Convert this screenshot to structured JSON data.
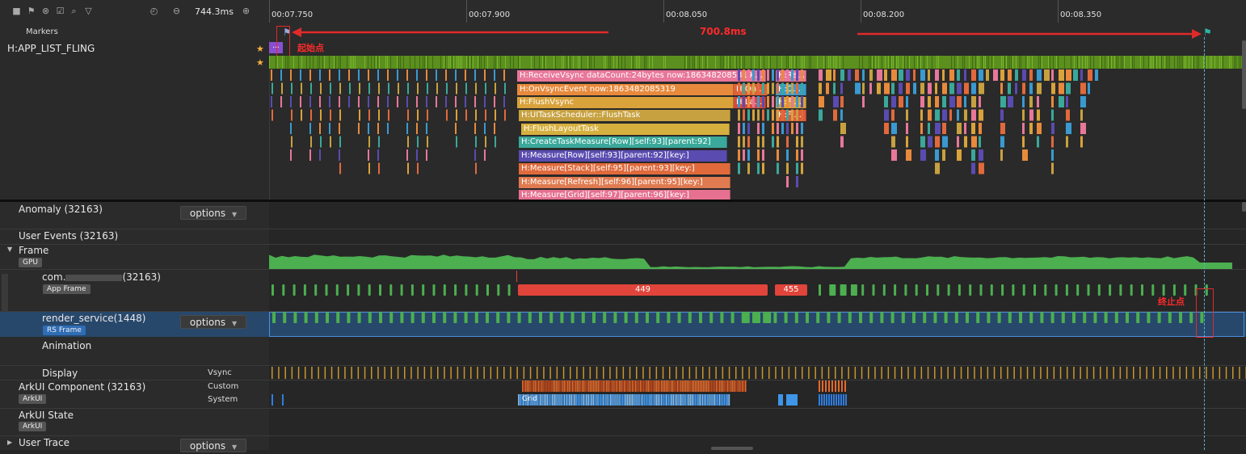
{
  "toolbar": {
    "icons": [
      "square-icon",
      "flag-icon",
      "close-circle-icon",
      "checkbox-icon",
      "search-icon",
      "filter-icon",
      "timer-icon",
      "zoom-out-icon",
      "zoom-in-icon"
    ],
    "duration": "744.3ms"
  },
  "ruler": {
    "ticks": [
      "00:07.750",
      "00:07.900",
      "00:08.050",
      "00:08.200",
      "00:08.350"
    ]
  },
  "markers_label": "Markers",
  "measure": {
    "value": "700.8ms",
    "start_note": "起始点",
    "end_note": "终止点"
  },
  "top_track": {
    "label": "H:APP_LIST_FLING",
    "collapsed_slice": "...",
    "slices": [
      {
        "text": "H:ReceiveVsync dataCount:24bytes now:1863482085319 ...",
        "color": "#e8779a"
      },
      {
        "text": "H:OnVsyncEvent now:1863482085319",
        "color": "#e88a3c"
      },
      {
        "text": "H:FlushVsync",
        "color": "#d9a23a"
      },
      {
        "text": "H:UITaskScheduler::FlushTask",
        "color": "#c7a13f"
      },
      {
        "text": "H:FlushLayoutTask",
        "color": "#d6b03e"
      },
      {
        "text": "H:CreateTaskMeasure[Row][self:93][parent:92]",
        "color": "#3aa89a"
      },
      {
        "text": "H:Measure[Row][self:93][parent:92][key:]",
        "color": "#5a4bb0"
      },
      {
        "text": "H:Measure[Stack][self:95][parent:93][key:]",
        "color": "#e06a3c"
      },
      {
        "text": "H:Measure[Refresh][self:96][parent:95][key:]",
        "color": "#e07a50"
      },
      {
        "text": "H:Measure[Grid][self:97][parent:96][key:]",
        "color": "#e57090"
      }
    ],
    "side_slices": [
      "H:On...",
      "H:La..."
    ],
    "right_slices": [
      "H:Re...",
      "H:O...",
      "H:Fl...",
      "H:Fl..."
    ]
  },
  "rows": {
    "anomaly": "Anomaly (32163)",
    "options": "options",
    "user_events": "User Events (32163)",
    "frame": "Frame",
    "gpu": "GPU",
    "app_process": "com.",
    "app_pid": "(32163)",
    "app_frame_tag": "App Frame",
    "frame_449": "449",
    "frame_455": "455",
    "render_service": "render_service(1448)",
    "rs_frame_tag": "RS Frame",
    "animation": "Animation",
    "display": "Display",
    "vsync": "Vsync",
    "arkui_component": "ArkUI Component (32163)",
    "custom": "Custom",
    "system": "System",
    "arkui_tag": "ArkUI",
    "grid_label": "Grid",
    "arkui_state": "ArkUI State",
    "user_trace": "User Trace"
  },
  "colors": {
    "background": "#262626",
    "frame_green": "#4caf50",
    "jank_red": "#e0443a",
    "selection_blue": "#28486b",
    "annotation_red": "#ff2a2a",
    "marker_teal": "#2bb5a5"
  }
}
